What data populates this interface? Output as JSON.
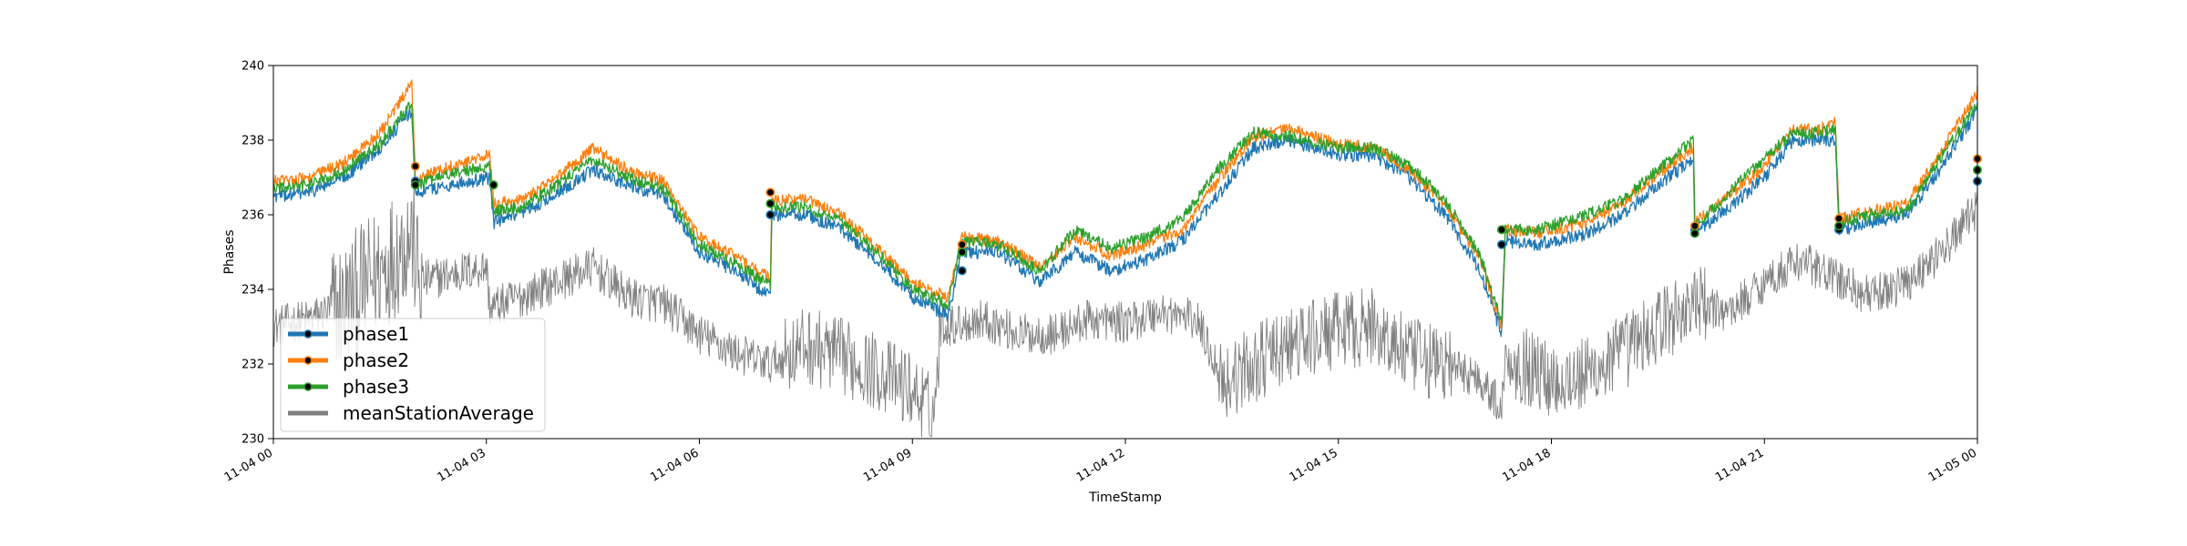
{
  "chart_data": {
    "type": "line",
    "title": "",
    "xlabel": "TimeStamp",
    "ylabel": "Phases",
    "ylim": [
      230,
      240
    ],
    "xlim_hours": [
      0,
      24
    ],
    "x_ticks": [
      {
        "hour": 0,
        "label": "11-04 00"
      },
      {
        "hour": 3,
        "label": "11-04 03"
      },
      {
        "hour": 6,
        "label": "11-04 06"
      },
      {
        "hour": 9,
        "label": "11-04 09"
      },
      {
        "hour": 12,
        "label": "11-04 12"
      },
      {
        "hour": 15,
        "label": "11-04 15"
      },
      {
        "hour": 18,
        "label": "11-04 18"
      },
      {
        "hour": 21,
        "label": "11-04 21"
      },
      {
        "hour": 24,
        "label": "11-05 00"
      }
    ],
    "y_ticks": [
      {
        "value": 230,
        "label": "230"
      },
      {
        "value": 232,
        "label": "232"
      },
      {
        "value": 234,
        "label": "234"
      },
      {
        "value": 236,
        "label": "236"
      },
      {
        "value": 238,
        "label": "238"
      },
      {
        "value": 240,
        "label": "240"
      }
    ],
    "legend": {
      "placement": "lower-left",
      "entries": [
        {
          "name": "phase1",
          "color": "#1f77b4",
          "marker": true
        },
        {
          "name": "phase2",
          "color": "#ff7f0e",
          "marker": true
        },
        {
          "name": "phase3",
          "color": "#2ca02c",
          "marker": true
        },
        {
          "name": "meanStationAverage",
          "color": "#808080",
          "marker": false
        }
      ]
    },
    "series": [
      {
        "name": "phase1",
        "color": "#1f77b4",
        "noise": 0.18,
        "points": [
          [
            0,
            236.5
          ],
          [
            0.5,
            236.6
          ],
          [
            1.0,
            237.0
          ],
          [
            1.5,
            237.8
          ],
          [
            1.95,
            238.8
          ],
          [
            2.0,
            236.6
          ],
          [
            2.5,
            236.8
          ],
          [
            3.05,
            237.0
          ],
          [
            3.1,
            235.8
          ],
          [
            3.5,
            236.0
          ],
          [
            4.0,
            236.6
          ],
          [
            4.5,
            237.2
          ],
          [
            5.0,
            236.8
          ],
          [
            5.5,
            236.5
          ],
          [
            6.0,
            235.0
          ],
          [
            6.5,
            234.5
          ],
          [
            7.0,
            233.8
          ],
          [
            7.02,
            236.0
          ],
          [
            7.5,
            236.0
          ],
          [
            8.0,
            235.6
          ],
          [
            8.5,
            234.8
          ],
          [
            9.0,
            233.8
          ],
          [
            9.5,
            233.3
          ],
          [
            9.7,
            235.0
          ],
          [
            10.2,
            235.0
          ],
          [
            10.8,
            234.2
          ],
          [
            11.3,
            235.0
          ],
          [
            11.8,
            234.5
          ],
          [
            12.3,
            234.8
          ],
          [
            12.8,
            235.3
          ],
          [
            13.3,
            236.5
          ],
          [
            13.8,
            237.8
          ],
          [
            14.3,
            238.0
          ],
          [
            15.0,
            237.6
          ],
          [
            15.5,
            237.6
          ],
          [
            16.0,
            237.0
          ],
          [
            16.5,
            236.0
          ],
          [
            17.0,
            234.5
          ],
          [
            17.3,
            232.8
          ],
          [
            17.35,
            235.3
          ],
          [
            17.8,
            235.2
          ],
          [
            18.5,
            235.5
          ],
          [
            19.0,
            236.0
          ],
          [
            19.5,
            236.8
          ],
          [
            20.0,
            237.5
          ],
          [
            20.02,
            235.5
          ],
          [
            20.5,
            236.2
          ],
          [
            21.0,
            237.0
          ],
          [
            21.4,
            238.0
          ],
          [
            21.8,
            238.0
          ],
          [
            22.0,
            238.0
          ],
          [
            22.05,
            235.6
          ],
          [
            22.5,
            235.8
          ],
          [
            23.0,
            236.0
          ],
          [
            23.4,
            237.0
          ],
          [
            24.0,
            238.8
          ]
        ]
      },
      {
        "name": "phase2",
        "color": "#ff7f0e",
        "noise": 0.16,
        "points": [
          [
            0,
            236.9
          ],
          [
            0.5,
            237.0
          ],
          [
            1.0,
            237.4
          ],
          [
            1.5,
            238.2
          ],
          [
            1.95,
            239.5
          ],
          [
            2.0,
            237.0
          ],
          [
            2.5,
            237.3
          ],
          [
            3.05,
            237.6
          ],
          [
            3.1,
            236.3
          ],
          [
            3.5,
            236.4
          ],
          [
            4.0,
            237.0
          ],
          [
            4.5,
            237.8
          ],
          [
            5.0,
            237.2
          ],
          [
            5.5,
            236.9
          ],
          [
            6.0,
            235.4
          ],
          [
            6.5,
            234.9
          ],
          [
            7.0,
            234.3
          ],
          [
            7.02,
            236.4
          ],
          [
            7.5,
            236.4
          ],
          [
            8.0,
            236.0
          ],
          [
            8.5,
            235.1
          ],
          [
            9.0,
            234.2
          ],
          [
            9.5,
            233.8
          ],
          [
            9.7,
            235.4
          ],
          [
            10.2,
            235.3
          ],
          [
            10.8,
            234.6
          ],
          [
            11.3,
            235.4
          ],
          [
            11.8,
            234.9
          ],
          [
            12.3,
            235.2
          ],
          [
            12.8,
            235.6
          ],
          [
            13.3,
            236.9
          ],
          [
            13.8,
            238.1
          ],
          [
            14.3,
            238.3
          ],
          [
            15.0,
            237.9
          ],
          [
            15.5,
            237.8
          ],
          [
            16.0,
            237.2
          ],
          [
            16.5,
            236.3
          ],
          [
            17.0,
            234.8
          ],
          [
            17.3,
            233.0
          ],
          [
            17.35,
            235.6
          ],
          [
            17.8,
            235.5
          ],
          [
            18.5,
            235.8
          ],
          [
            19.0,
            236.3
          ],
          [
            19.5,
            237.1
          ],
          [
            20.0,
            237.8
          ],
          [
            20.02,
            235.8
          ],
          [
            20.5,
            236.5
          ],
          [
            21.0,
            237.3
          ],
          [
            21.4,
            238.3
          ],
          [
            21.8,
            238.3
          ],
          [
            22.0,
            238.5
          ],
          [
            22.05,
            235.9
          ],
          [
            22.5,
            236.1
          ],
          [
            23.0,
            236.3
          ],
          [
            23.4,
            237.4
          ],
          [
            24.0,
            239.3
          ]
        ]
      },
      {
        "name": "phase3",
        "color": "#2ca02c",
        "noise": 0.16,
        "points": [
          [
            0,
            236.7
          ],
          [
            0.5,
            236.8
          ],
          [
            1.0,
            237.2
          ],
          [
            1.5,
            237.9
          ],
          [
            1.95,
            239.0
          ],
          [
            2.0,
            236.8
          ],
          [
            2.5,
            237.1
          ],
          [
            3.05,
            237.3
          ],
          [
            3.1,
            236.1
          ],
          [
            3.5,
            236.2
          ],
          [
            4.0,
            236.8
          ],
          [
            4.5,
            237.5
          ],
          [
            5.0,
            237.0
          ],
          [
            5.5,
            236.7
          ],
          [
            6.0,
            235.2
          ],
          [
            6.5,
            234.7
          ],
          [
            7.0,
            234.1
          ],
          [
            7.02,
            236.2
          ],
          [
            7.5,
            236.2
          ],
          [
            8.0,
            235.8
          ],
          [
            8.5,
            235.0
          ],
          [
            9.0,
            234.0
          ],
          [
            9.5,
            233.6
          ],
          [
            9.7,
            235.3
          ],
          [
            10.2,
            235.2
          ],
          [
            10.8,
            234.5
          ],
          [
            11.3,
            235.6
          ],
          [
            11.8,
            235.1
          ],
          [
            12.3,
            235.4
          ],
          [
            12.8,
            235.9
          ],
          [
            13.3,
            237.2
          ],
          [
            13.8,
            238.2
          ],
          [
            14.3,
            238.1
          ],
          [
            15.0,
            237.8
          ],
          [
            15.5,
            237.8
          ],
          [
            16.0,
            237.3
          ],
          [
            16.5,
            236.4
          ],
          [
            17.0,
            234.9
          ],
          [
            17.3,
            233.1
          ],
          [
            17.35,
            235.6
          ],
          [
            17.8,
            235.6
          ],
          [
            18.5,
            236.0
          ],
          [
            19.0,
            236.4
          ],
          [
            19.5,
            237.2
          ],
          [
            20.0,
            238.0
          ],
          [
            20.02,
            235.7
          ],
          [
            20.5,
            236.6
          ],
          [
            21.0,
            237.5
          ],
          [
            21.4,
            238.2
          ],
          [
            21.8,
            238.2
          ],
          [
            22.0,
            238.3
          ],
          [
            22.05,
            235.8
          ],
          [
            22.5,
            236.0
          ],
          [
            23.0,
            236.1
          ],
          [
            23.4,
            237.3
          ],
          [
            24.0,
            239.0
          ]
        ]
      },
      {
        "name": "meanStationAverage",
        "color": "#808080",
        "noise": 0.55,
        "points": [
          [
            0,
            233.0
          ],
          [
            0.5,
            233.2
          ],
          [
            1.0,
            233.6
          ],
          [
            1.5,
            234.5
          ],
          [
            1.95,
            235.5
          ],
          [
            2.05,
            234.2
          ],
          [
            2.5,
            234.4
          ],
          [
            3.0,
            234.6
          ],
          [
            3.05,
            233.5
          ],
          [
            3.5,
            233.8
          ],
          [
            4.0,
            234.2
          ],
          [
            4.5,
            234.6
          ],
          [
            5.0,
            233.8
          ],
          [
            5.5,
            233.6
          ],
          [
            6.0,
            232.8
          ],
          [
            6.5,
            232.3
          ],
          [
            7.0,
            232.0
          ],
          [
            7.5,
            232.5
          ],
          [
            8.0,
            232.2
          ],
          [
            8.5,
            231.8
          ],
          [
            9.0,
            231.3
          ],
          [
            9.3,
            230.6
          ],
          [
            9.4,
            233.0
          ],
          [
            10.0,
            233.2
          ],
          [
            10.5,
            232.8
          ],
          [
            11.0,
            232.8
          ],
          [
            11.5,
            233.2
          ],
          [
            12.0,
            233.1
          ],
          [
            12.5,
            233.4
          ],
          [
            13.0,
            233.2
          ],
          [
            13.4,
            231.5
          ],
          [
            14.0,
            232.2
          ],
          [
            14.5,
            232.6
          ],
          [
            15.0,
            232.9
          ],
          [
            15.5,
            233.0
          ],
          [
            16.0,
            232.2
          ],
          [
            16.5,
            232.0
          ],
          [
            17.0,
            231.6
          ],
          [
            17.3,
            230.8
          ],
          [
            17.35,
            232.2
          ],
          [
            18.0,
            231.6
          ],
          [
            18.5,
            231.7
          ],
          [
            19.0,
            232.3
          ],
          [
            19.5,
            233.0
          ],
          [
            20.0,
            233.6
          ],
          [
            20.5,
            233.4
          ],
          [
            21.0,
            234.2
          ],
          [
            21.5,
            234.8
          ],
          [
            22.0,
            234.3
          ],
          [
            22.5,
            233.8
          ],
          [
            23.0,
            234.2
          ],
          [
            23.5,
            235.0
          ],
          [
            24.0,
            236.2
          ]
        ]
      }
    ],
    "markers": [
      {
        "hour": 2.0,
        "phase1": 236.9,
        "phase2": 237.3,
        "phase3": 236.8
      },
      {
        "hour": 3.1,
        "phase1": 236.8,
        "phase2": 236.8,
        "phase3": 236.8
      },
      {
        "hour": 7.0,
        "phase1": 236.0,
        "phase2": 236.6,
        "phase3": 236.3
      },
      {
        "hour": 9.7,
        "phase1": 234.5,
        "phase2": 235.2,
        "phase3": 235.0
      },
      {
        "hour": 17.3,
        "phase1": 235.2,
        "phase2": 235.6,
        "phase3": 235.6
      },
      {
        "hour": 20.02,
        "phase1": 235.6,
        "phase2": 235.7,
        "phase3": 235.5
      },
      {
        "hour": 22.05,
        "phase1": 235.6,
        "phase2": 235.9,
        "phase3": 235.7
      },
      {
        "hour": 24.0,
        "phase1": 236.9,
        "phase2": 237.5,
        "phase3": 237.2
      }
    ]
  }
}
